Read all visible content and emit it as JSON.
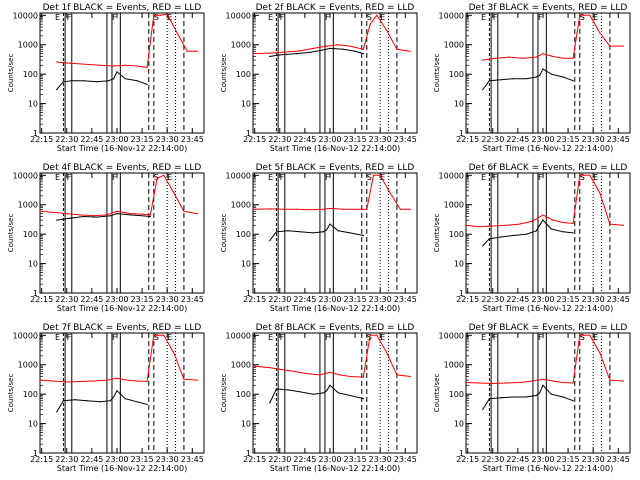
{
  "chart_data": [
    {
      "type": "line",
      "title": "Det 1f BLACK = Events, RED = LLD",
      "xlabel": "Start Time (16-Nov-12 22:14:00)",
      "ylabel": "Counts/sec",
      "yscale": "log",
      "xlim": [
        "22:14",
        "23:52"
      ],
      "ylim": [
        1,
        12000
      ],
      "x_ticks": [
        "22:15",
        "22:30",
        "22:45",
        "23:00",
        "23:15",
        "23:30",
        "23:45"
      ],
      "y_ticks": [
        "1",
        "10",
        "100",
        "1000",
        "10000"
      ],
      "markers": [
        "E",
        "F",
        "F",
        "S",
        "E"
      ],
      "series": [
        {
          "color": "#000000",
          "x": [
            "22:24",
            "22:28",
            "22:33",
            "22:40",
            "22:48",
            "22:55",
            "22:58",
            "23:00",
            "23:05",
            "23:12",
            "23:18"
          ],
          "values": [
            30,
            55,
            60,
            60,
            55,
            60,
            70,
            120,
            70,
            60,
            45
          ]
        },
        {
          "color": "#ff0000",
          "x": [
            "22:24",
            "22:30",
            "22:40",
            "22:50",
            "22:58",
            "23:05",
            "23:12",
            "23:18",
            "23:22",
            "23:26",
            "23:30",
            "23:36",
            "23:42",
            "23:48"
          ],
          "values": [
            260,
            240,
            220,
            200,
            190,
            200,
            190,
            170,
            10000,
            10000,
            11000,
            2500,
            600,
            600
          ]
        }
      ]
    },
    {
      "type": "line",
      "title": "Det 2f BLACK = Events, RED = LLD",
      "xlabel": "Start Time (16-Nov-12 22:14:00)",
      "ylabel": "Counts/sec",
      "yscale": "log",
      "xlim": [
        "22:14",
        "23:52"
      ],
      "ylim": [
        1,
        12000
      ],
      "x_ticks": [
        "22:15",
        "22:30",
        "22:45",
        "23:00",
        "23:15",
        "23:30",
        "23:45"
      ],
      "y_ticks": [
        "1",
        "10",
        "100",
        "1000",
        "10000"
      ],
      "markers": [
        "E",
        "F",
        "F",
        "S",
        "E"
      ],
      "series": [
        {
          "color": "#000000",
          "x": [
            "22:24",
            "22:30",
            "22:40",
            "22:48",
            "22:55",
            "23:00",
            "23:08",
            "23:15",
            "23:20"
          ],
          "values": [
            400,
            450,
            500,
            550,
            650,
            750,
            700,
            600,
            500
          ]
        },
        {
          "color": "#ff0000",
          "x": [
            "22:14",
            "22:24",
            "22:32",
            "22:42",
            "22:50",
            "22:58",
            "23:05",
            "23:12",
            "23:20",
            "23:24",
            "23:28",
            "23:34",
            "23:40",
            "23:48"
          ],
          "values": [
            500,
            520,
            560,
            620,
            750,
            900,
            1000,
            900,
            700,
            5000,
            10000,
            3000,
            700,
            600
          ]
        }
      ]
    },
    {
      "type": "line",
      "title": "Det 3f BLACK = Events, RED = LLD",
      "xlabel": "Start Time (16-Nov-12 22:14:00)",
      "ylabel": "Counts/sec",
      "yscale": "log",
      "xlim": [
        "22:14",
        "23:52"
      ],
      "ylim": [
        1,
        12000
      ],
      "x_ticks": [
        "22:15",
        "22:30",
        "22:45",
        "23:00",
        "23:15",
        "23:30",
        "23:45"
      ],
      "y_ticks": [
        "1",
        "10",
        "100",
        "1000",
        "10000"
      ],
      "markers": [
        "E",
        "F",
        "F",
        "S",
        "E"
      ],
      "series": [
        {
          "color": "#000000",
          "x": [
            "22:24",
            "22:28",
            "22:35",
            "22:42",
            "22:50",
            "22:56",
            "22:58",
            "23:00",
            "23:05",
            "23:12",
            "23:18"
          ],
          "values": [
            30,
            60,
            65,
            70,
            70,
            80,
            90,
            150,
            100,
            80,
            60
          ]
        },
        {
          "color": "#ff0000",
          "x": [
            "22:24",
            "22:32",
            "22:40",
            "22:48",
            "22:56",
            "23:00",
            "23:06",
            "23:12",
            "23:18",
            "23:22",
            "23:28",
            "23:34",
            "23:40",
            "23:48"
          ],
          "values": [
            300,
            350,
            380,
            350,
            380,
            500,
            400,
            350,
            350,
            10000,
            10000,
            2500,
            900,
            900
          ]
        }
      ]
    },
    {
      "type": "line",
      "title": "Det 4f BLACK = Events, RED = LLD",
      "xlabel": "Start Time (16-Nov-12 22:14:00)",
      "ylabel": "Counts/sec",
      "yscale": "log",
      "xlim": [
        "22:14",
        "23:52"
      ],
      "ylim": [
        1,
        12000
      ],
      "x_ticks": [
        "22:15",
        "22:30",
        "22:45",
        "23:00",
        "23:15",
        "23:30",
        "23:45"
      ],
      "y_ticks": [
        "1",
        "10",
        "100",
        "1000",
        "10000"
      ],
      "markers": [
        "E",
        "F",
        "F",
        "S",
        "E"
      ],
      "series": [
        {
          "color": "#000000",
          "x": [
            "22:24",
            "22:32",
            "22:40",
            "22:48",
            "22:56",
            "23:00",
            "23:08",
            "23:15",
            "23:20"
          ],
          "values": [
            300,
            350,
            400,
            380,
            420,
            500,
            450,
            420,
            400
          ]
        },
        {
          "color": "#ff0000",
          "x": [
            "22:14",
            "22:22",
            "22:30",
            "22:38",
            "22:46",
            "22:54",
            "23:00",
            "23:08",
            "23:15",
            "23:20",
            "23:24",
            "23:28",
            "23:34",
            "23:40",
            "23:48"
          ],
          "values": [
            600,
            550,
            500,
            450,
            420,
            450,
            600,
            500,
            480,
            450,
            8000,
            10000,
            2500,
            600,
            500
          ]
        }
      ]
    },
    {
      "type": "line",
      "title": "Det 5f BLACK = Events, RED = LLD",
      "xlabel": "Start Time (16-Nov-12 22:14:00)",
      "ylabel": "Counts/sec",
      "yscale": "log",
      "xlim": [
        "22:14",
        "23:52"
      ],
      "ylim": [
        1,
        12000
      ],
      "x_ticks": [
        "22:15",
        "22:30",
        "22:45",
        "23:00",
        "23:15",
        "23:30",
        "23:45"
      ],
      "y_ticks": [
        "1",
        "10",
        "100",
        "1000",
        "10000"
      ],
      "markers": [
        "E",
        "F",
        "F",
        "S",
        "E"
      ],
      "series": [
        {
          "color": "#000000",
          "x": [
            "22:24",
            "22:28",
            "22:35",
            "22:42",
            "22:50",
            "22:56",
            "22:58",
            "23:00",
            "23:05",
            "23:12",
            "23:20"
          ],
          "values": [
            60,
            120,
            130,
            120,
            110,
            120,
            140,
            220,
            130,
            110,
            90
          ]
        },
        {
          "color": "#ff0000",
          "x": [
            "22:14",
            "22:24",
            "22:32",
            "22:40",
            "22:48",
            "22:56",
            "23:00",
            "23:08",
            "23:16",
            "23:22",
            "23:26",
            "23:30",
            "23:36",
            "23:42",
            "23:48"
          ],
          "values": [
            700,
            720,
            700,
            700,
            680,
            700,
            750,
            700,
            700,
            700,
            10000,
            10000,
            2500,
            700,
            700
          ]
        }
      ]
    },
    {
      "type": "line",
      "title": "Det 6f BLACK = Events, RED = LLD",
      "xlabel": "Start Time (16-Nov-12 22:14:00)",
      "ylabel": "Counts/sec",
      "yscale": "log",
      "xlim": [
        "22:14",
        "23:52"
      ],
      "ylim": [
        1,
        12000
      ],
      "x_ticks": [
        "22:15",
        "22:30",
        "22:45",
        "23:00",
        "23:15",
        "23:30",
        "23:45"
      ],
      "y_ticks": [
        "1",
        "10",
        "100",
        "1000",
        "10000"
      ],
      "markers": [
        "E",
        "F",
        "F",
        "S",
        "E"
      ],
      "series": [
        {
          "color": "#000000",
          "x": [
            "22:24",
            "22:28",
            "22:35",
            "22:42",
            "22:50",
            "22:56",
            "22:58",
            "23:00",
            "23:05",
            "23:12",
            "23:18"
          ],
          "values": [
            40,
            70,
            80,
            90,
            100,
            130,
            200,
            300,
            150,
            120,
            110
          ]
        },
        {
          "color": "#ff0000",
          "x": [
            "22:14",
            "22:22",
            "22:30",
            "22:38",
            "22:46",
            "22:54",
            "23:00",
            "23:06",
            "23:12",
            "23:18",
            "23:22",
            "23:28",
            "23:34",
            "23:40",
            "23:48"
          ],
          "values": [
            200,
            180,
            190,
            200,
            220,
            280,
            450,
            300,
            250,
            230,
            10000,
            10000,
            2500,
            220,
            200
          ]
        }
      ]
    },
    {
      "type": "line",
      "title": "Det 7f BLACK = Events, RED = LLD",
      "xlabel": "Start Time (16-Nov-12 22:14:00)",
      "ylabel": "Counts/sec",
      "yscale": "log",
      "xlim": [
        "22:14",
        "23:52"
      ],
      "ylim": [
        1,
        12000
      ],
      "x_ticks": [
        "22:15",
        "22:30",
        "22:45",
        "23:00",
        "23:15",
        "23:30",
        "23:45"
      ],
      "y_ticks": [
        "1",
        "10",
        "100",
        "1000",
        "10000"
      ],
      "markers": [
        "E",
        "F",
        "F",
        "S",
        "E"
      ],
      "series": [
        {
          "color": "#000000",
          "x": [
            "22:24",
            "22:28",
            "22:35",
            "22:42",
            "22:50",
            "22:56",
            "22:58",
            "23:00",
            "23:05",
            "23:12",
            "23:18"
          ],
          "values": [
            25,
            60,
            65,
            60,
            55,
            60,
            80,
            130,
            70,
            55,
            45
          ]
        },
        {
          "color": "#ff0000",
          "x": [
            "22:14",
            "22:22",
            "22:30",
            "22:38",
            "22:46",
            "22:54",
            "23:00",
            "23:06",
            "23:12",
            "23:18",
            "23:22",
            "23:28",
            "23:34",
            "23:40",
            "23:48"
          ],
          "values": [
            300,
            280,
            260,
            270,
            280,
            300,
            350,
            300,
            280,
            270,
            10000,
            10000,
            2500,
            320,
            300
          ]
        }
      ]
    },
    {
      "type": "line",
      "title": "Det 8f BLACK = Events, RED = LLD",
      "xlabel": "Start Time (16-Nov-12 22:14:00)",
      "ylabel": "Counts/sec",
      "yscale": "log",
      "xlim": [
        "22:14",
        "23:52"
      ],
      "ylim": [
        1,
        12000
      ],
      "x_ticks": [
        "22:15",
        "22:30",
        "22:45",
        "23:00",
        "23:15",
        "23:30",
        "23:45"
      ],
      "y_ticks": [
        "1",
        "10",
        "100",
        "1000",
        "10000"
      ],
      "markers": [
        "E",
        "F",
        "F",
        "S",
        "E"
      ],
      "series": [
        {
          "color": "#000000",
          "x": [
            "22:24",
            "22:28",
            "22:35",
            "22:42",
            "22:50",
            "22:56",
            "22:58",
            "23:00",
            "23:05",
            "23:12",
            "23:20"
          ],
          "values": [
            50,
            150,
            140,
            120,
            100,
            110,
            130,
            200,
            110,
            90,
            70
          ]
        },
        {
          "color": "#ff0000",
          "x": [
            "22:14",
            "22:24",
            "22:30",
            "22:38",
            "22:46",
            "22:54",
            "23:00",
            "23:06",
            "23:12",
            "23:20",
            "23:24",
            "23:28",
            "23:34",
            "23:40",
            "23:48"
          ],
          "values": [
            900,
            800,
            700,
            600,
            500,
            450,
            550,
            450,
            400,
            380,
            10000,
            10000,
            2500,
            450,
            400
          ]
        }
      ]
    },
    {
      "type": "line",
      "title": "Det 9f BLACK = Events, RED = LLD",
      "xlabel": "Start Time (16-Nov-12 22:14:00)",
      "ylabel": "Counts/sec",
      "yscale": "log",
      "xlim": [
        "22:14",
        "23:52"
      ],
      "ylim": [
        1,
        12000
      ],
      "x_ticks": [
        "22:15",
        "22:30",
        "22:45",
        "23:00",
        "23:15",
        "23:30",
        "23:45"
      ],
      "y_ticks": [
        "1",
        "10",
        "100",
        "1000",
        "10000"
      ],
      "markers": [
        "E",
        "F",
        "F",
        "S",
        "E"
      ],
      "series": [
        {
          "color": "#000000",
          "x": [
            "22:24",
            "22:28",
            "22:35",
            "22:42",
            "22:50",
            "22:56",
            "22:58",
            "23:00",
            "23:05",
            "23:12",
            "23:18"
          ],
          "values": [
            30,
            70,
            75,
            80,
            80,
            90,
            110,
            200,
            100,
            80,
            60
          ]
        },
        {
          "color": "#ff0000",
          "x": [
            "22:14",
            "22:22",
            "22:30",
            "22:38",
            "22:46",
            "22:54",
            "23:00",
            "23:06",
            "23:12",
            "23:18",
            "23:22",
            "23:28",
            "23:34",
            "23:40",
            "23:48"
          ],
          "values": [
            250,
            240,
            230,
            240,
            250,
            280,
            320,
            280,
            250,
            240,
            10000,
            10000,
            2500,
            300,
            280
          ]
        }
      ]
    }
  ]
}
